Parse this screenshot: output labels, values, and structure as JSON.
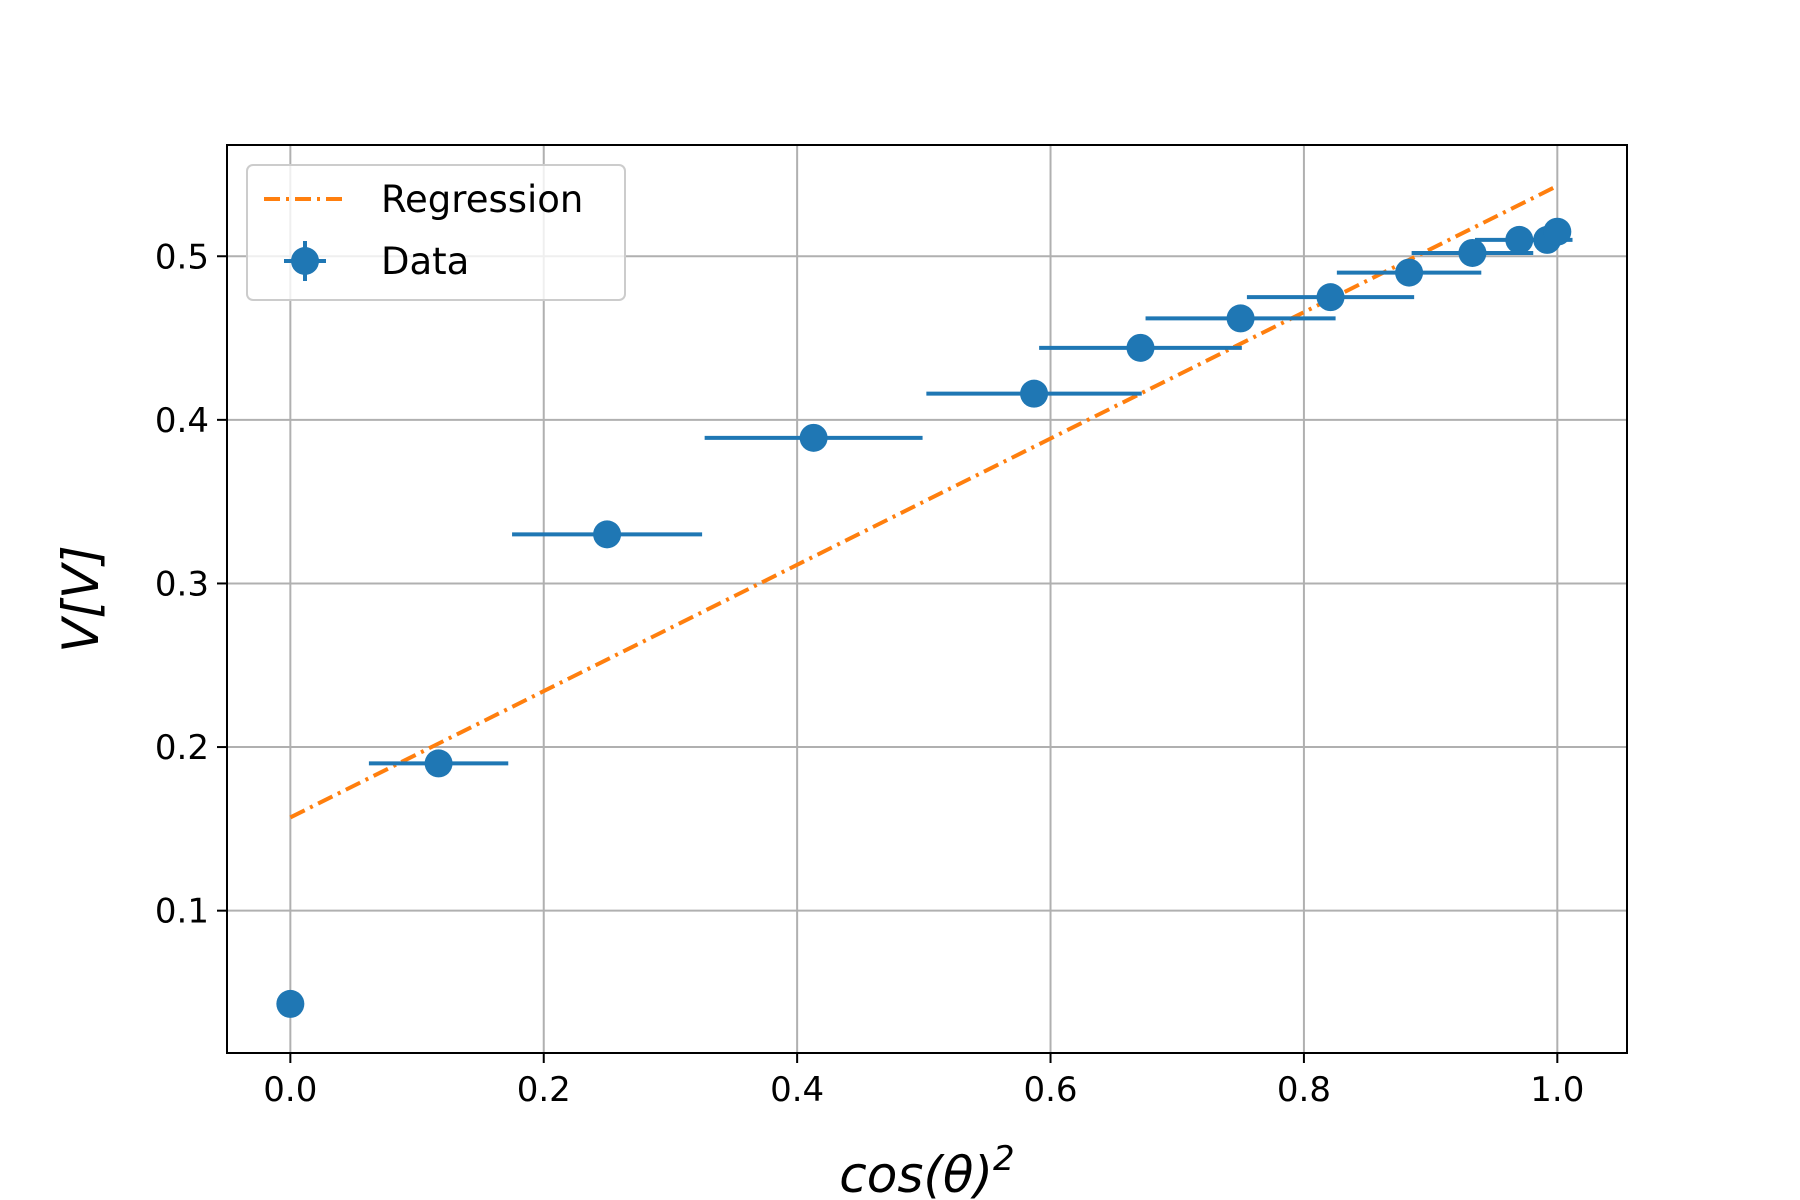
{
  "chart_data": {
    "type": "scatter",
    "xlabel": "cos(θ)",
    "xlabel_superscript": "2",
    "ylabel": "V[V]",
    "xlim": [
      -0.05,
      1.055
    ],
    "ylim": [
      0.013,
      0.568
    ],
    "x_ticks": [
      0.0,
      0.2,
      0.4,
      0.6,
      0.8,
      1.0
    ],
    "x_tick_labels": [
      "0.0",
      "0.2",
      "0.4",
      "0.6",
      "0.8",
      "1.0"
    ],
    "y_ticks": [
      0.1,
      0.2,
      0.3,
      0.4,
      0.5
    ],
    "y_tick_labels": [
      "0.1",
      "0.2",
      "0.3",
      "0.4",
      "0.5"
    ],
    "grid": true,
    "legend_position": "upper-left",
    "series": [
      {
        "name": "Regression",
        "kind": "line",
        "style": "dash-dot",
        "color": "#ff7f0e",
        "x": [
          0.0,
          1.0
        ],
        "y": [
          0.157,
          0.543
        ]
      },
      {
        "name": "Data",
        "kind": "errorbar",
        "color": "#1f77b4",
        "x": [
          0.0,
          0.117,
          0.25,
          0.413,
          0.587,
          0.671,
          0.75,
          0.821,
          0.883,
          0.933,
          0.97,
          0.992,
          1.0
        ],
        "y": [
          0.043,
          0.19,
          0.33,
          0.389,
          0.416,
          0.444,
          0.462,
          0.475,
          0.49,
          0.502,
          0.51,
          0.51,
          0.515
        ],
        "x_err": [
          0.0,
          0.055,
          0.075,
          0.086,
          0.085,
          0.08,
          0.075,
          0.066,
          0.057,
          0.048,
          0.035,
          0.02,
          0.0
        ]
      }
    ]
  }
}
